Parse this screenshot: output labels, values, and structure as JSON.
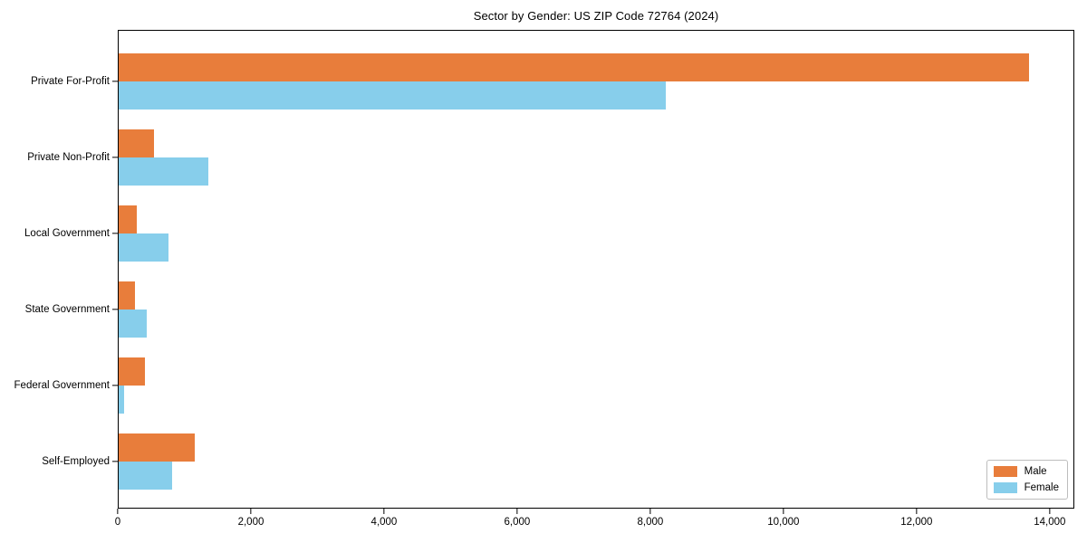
{
  "chart_data": {
    "type": "bar",
    "orientation": "horizontal",
    "title": "Sector by Gender: US ZIP Code 72764 (2024)",
    "categories": [
      "Private For-Profit",
      "Private Non-Profit",
      "Local Government",
      "State Government",
      "Federal Government",
      "Self-Employed"
    ],
    "series": [
      {
        "name": "Male",
        "color": "#e87d3b",
        "values": [
          13700,
          535,
          270,
          250,
          400,
          1150
        ]
      },
      {
        "name": "Female",
        "color": "#87ceeb",
        "values": [
          8230,
          1350,
          750,
          420,
          80,
          800
        ]
      }
    ],
    "xlabel": "",
    "ylabel": "",
    "xlim": [
      0,
      14370
    ],
    "xticks": [
      0,
      2000,
      4000,
      6000,
      8000,
      10000,
      12000,
      14000
    ],
    "xtick_labels": [
      "0",
      "2,000",
      "4,000",
      "6,000",
      "8,000",
      "10,000",
      "12,000",
      "14,000"
    ],
    "grid": false,
    "legend_position": "lower right",
    "spine_color": "#000000",
    "background_color": "#ffffff"
  }
}
